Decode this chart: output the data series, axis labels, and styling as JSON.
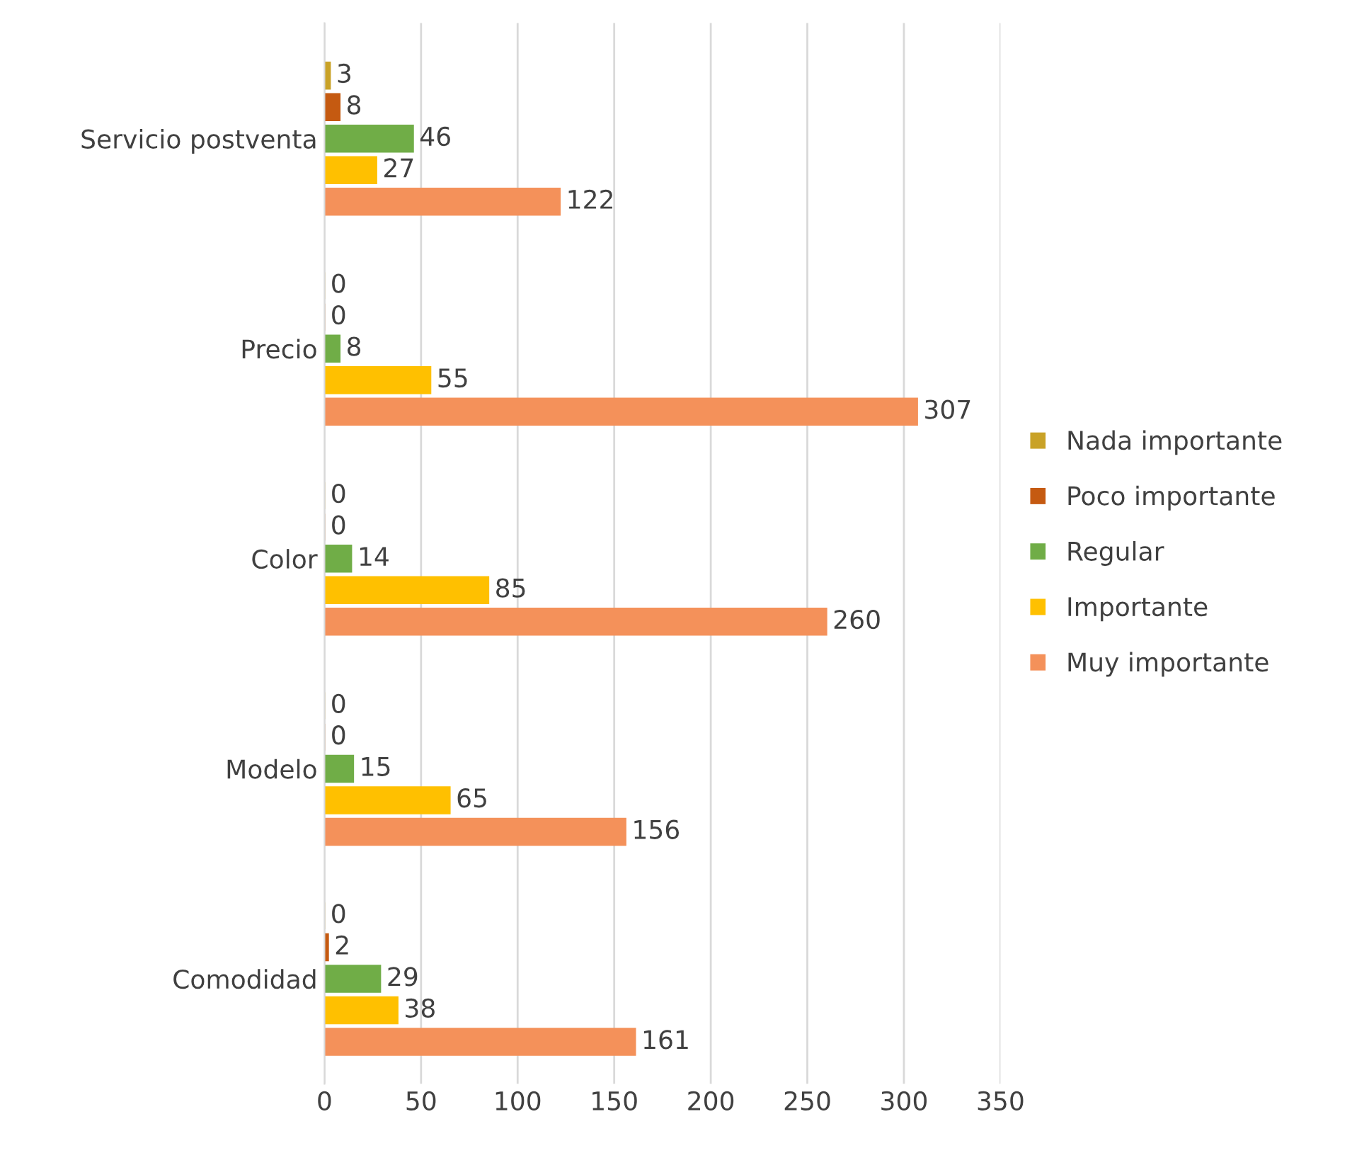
{
  "chart_data": {
    "type": "bar",
    "orientation": "horizontal",
    "categories": [
      "Servicio postventa",
      "Precio",
      "Color",
      "Modelo",
      "Comodidad"
    ],
    "series": [
      {
        "name": "Nada importante",
        "color": "#c9a227",
        "values": [
          3,
          0,
          0,
          0,
          0
        ]
      },
      {
        "name": "Poco importante",
        "color": "#c55a11",
        "values": [
          8,
          0,
          0,
          0,
          2
        ]
      },
      {
        "name": "Regular",
        "color": "#70ad47",
        "values": [
          46,
          8,
          14,
          15,
          29
        ]
      },
      {
        "name": "Importante",
        "color": "#ffc000",
        "values": [
          27,
          55,
          85,
          65,
          38
        ]
      },
      {
        "name": "Muy importante",
        "color": "#f4915a",
        "values": [
          122,
          307,
          260,
          156,
          161
        ]
      }
    ],
    "xlim": [
      0,
      350
    ],
    "xticks": [
      0,
      50,
      100,
      150,
      200,
      250,
      300,
      350
    ],
    "grid": "x",
    "legend": "right",
    "data_labels": true
  }
}
